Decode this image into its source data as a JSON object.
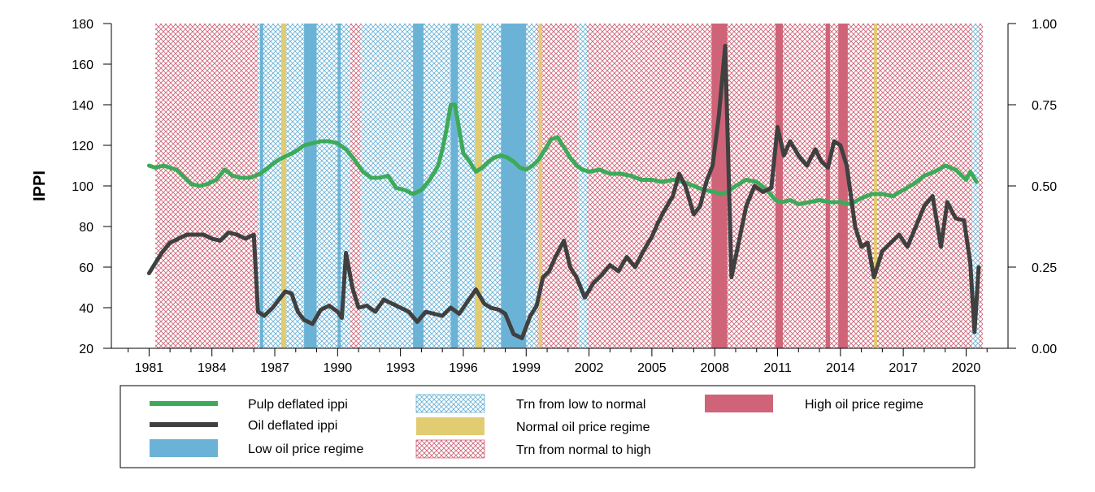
{
  "chart_data": {
    "type": "line",
    "ylabel": "IPPI",
    "xlim": [
      1979.2,
      2022.0
    ],
    "ylim": [
      20,
      180
    ],
    "y2lim": [
      0,
      1
    ],
    "yticks": [
      20,
      40,
      60,
      80,
      100,
      120,
      140,
      160,
      180
    ],
    "y2ticks": [
      "0.00",
      "0.25",
      "0.50",
      "0.75",
      "1.00"
    ],
    "y2tick_values": [
      0,
      0.25,
      0.5,
      0.75,
      1.0
    ],
    "xticks": [
      "1981",
      "1984",
      "1987",
      "1990",
      "1993",
      "1996",
      "1999",
      "2002",
      "2005",
      "2008",
      "2011",
      "2014",
      "2017",
      "2020"
    ],
    "grid": false,
    "legend_position": "bottom",
    "colors": {
      "pulp": "#3daa5a",
      "oil": "#404040",
      "low": "#6bb3d6",
      "normal": "#e2cc72",
      "high": "#cf6478",
      "trn_low_normal": "#6bb3d6",
      "trn_normal_high": "#cf6478"
    },
    "legend": [
      {
        "key": "pulp",
        "label": "Pulp deflated ippi",
        "kind": "line"
      },
      {
        "key": "oil",
        "label": "Oil deflated ippi",
        "kind": "line"
      },
      {
        "key": "low",
        "label": "Low oil price regime",
        "kind": "solid"
      },
      {
        "key": "trn_low_normal",
        "label": "Trn from low to normal",
        "kind": "hatch"
      },
      {
        "key": "normal",
        "label": "Normal oil price regime",
        "kind": "solid"
      },
      {
        "key": "trn_normal_high",
        "label": "Trn from normal to high",
        "kind": "hatch"
      },
      {
        "key": "high",
        "label": "High oil price regime",
        "kind": "solid"
      }
    ],
    "regimes": [
      {
        "type": "trn_normal_high",
        "start": 1981.3,
        "end": 1986.2
      },
      {
        "type": "trn_low_normal",
        "start": 1986.2,
        "end": 1990.6
      },
      {
        "type": "low",
        "start": 1986.3,
        "end": 1986.45
      },
      {
        "type": "normal",
        "start": 1987.3,
        "end": 1987.55
      },
      {
        "type": "low",
        "start": 1988.4,
        "end": 1989.0
      },
      {
        "type": "low",
        "start": 1990.0,
        "end": 1990.15
      },
      {
        "type": "trn_normal_high",
        "start": 1990.6,
        "end": 1991.1
      },
      {
        "type": "trn_low_normal",
        "start": 1991.1,
        "end": 1999.5
      },
      {
        "type": "low",
        "start": 1993.6,
        "end": 1994.1
      },
      {
        "type": "low",
        "start": 1995.4,
        "end": 1995.75
      },
      {
        "type": "normal",
        "start": 1996.55,
        "end": 1996.9
      },
      {
        "type": "low",
        "start": 1997.8,
        "end": 1999.0
      },
      {
        "type": "trn_normal_high",
        "start": 1999.5,
        "end": 2001.5
      },
      {
        "type": "normal",
        "start": 1999.6,
        "end": 1999.75
      },
      {
        "type": "trn_low_normal",
        "start": 2001.5,
        "end": 2001.9
      },
      {
        "type": "trn_normal_high",
        "start": 2001.9,
        "end": 2020.3
      },
      {
        "type": "high",
        "start": 2007.85,
        "end": 2008.6
      },
      {
        "type": "high",
        "start": 2010.9,
        "end": 2011.25
      },
      {
        "type": "high",
        "start": 2013.3,
        "end": 2013.5
      },
      {
        "type": "high",
        "start": 2013.9,
        "end": 2014.35
      },
      {
        "type": "normal",
        "start": 2015.6,
        "end": 2015.75
      },
      {
        "type": "trn_low_normal",
        "start": 2020.3,
        "end": 2020.6
      },
      {
        "type": "trn_normal_high",
        "start": 2020.6,
        "end": 2020.8
      }
    ],
    "series": [
      {
        "key": "pulp",
        "name": "Pulp deflated ippi",
        "x": [
          1981.0,
          1981.3,
          1981.7,
          1982.0,
          1982.3,
          1982.6,
          1983.0,
          1983.4,
          1983.8,
          1984.2,
          1984.6,
          1985.0,
          1985.4,
          1985.8,
          1986.3,
          1986.8,
          1987.2,
          1987.6,
          1988.0,
          1988.4,
          1988.8,
          1989.2,
          1989.6,
          1990.0,
          1990.4,
          1990.8,
          1991.2,
          1991.6,
          1992.0,
          1992.4,
          1992.8,
          1993.2,
          1993.6,
          1994.0,
          1994.4,
          1994.8,
          1995.0,
          1995.2,
          1995.4,
          1995.6,
          1995.8,
          1996.0,
          1996.3,
          1996.6,
          1996.9,
          1997.2,
          1997.5,
          1997.8,
          1998.1,
          1998.4,
          1998.7,
          1999.0,
          1999.3,
          1999.6,
          1999.9,
          2000.2,
          2000.5,
          2000.8,
          2001.1,
          2001.4,
          2001.7,
          2002.0,
          2002.5,
          2003.0,
          2003.5,
          2004.0,
          2004.5,
          2005.0,
          2005.5,
          2006.0,
          2006.5,
          2007.0,
          2007.5,
          2008.0,
          2008.3,
          2008.6,
          2009.0,
          2009.5,
          2010.0,
          2010.5,
          2010.9,
          2011.2,
          2011.6,
          2012.0,
          2012.5,
          2013.0,
          2013.5,
          2014.0,
          2014.5,
          2015.0,
          2015.5,
          2016.0,
          2016.5,
          2017.0,
          2017.5,
          2018.0,
          2018.5,
          2019.0,
          2019.5,
          2020.0,
          2020.2,
          2020.5
        ],
        "values": [
          110,
          109,
          110,
          109,
          108,
          105,
          101,
          100,
          101,
          103,
          108,
          105,
          104,
          104,
          106,
          110,
          113,
          115,
          117,
          120,
          121,
          122,
          122,
          121,
          118,
          113,
          107,
          104,
          104,
          105,
          99,
          98,
          96,
          98,
          103,
          110,
          118,
          128,
          140,
          140,
          128,
          116,
          112,
          107,
          109,
          112,
          114,
          115,
          114,
          112,
          109,
          108,
          110,
          113,
          118,
          123,
          124,
          119,
          114,
          110,
          108,
          107,
          108,
          106,
          106,
          105,
          103,
          103,
          102,
          103,
          102,
          100,
          98,
          97,
          96,
          97,
          100,
          103,
          102,
          98,
          93,
          92,
          93,
          91,
          92,
          93,
          92,
          92,
          91,
          94,
          96,
          96,
          95,
          98,
          101,
          105,
          107,
          110,
          108,
          103,
          107,
          102
        ]
      },
      {
        "key": "oil",
        "name": "Oil deflated ippi",
        "x": [
          1981.0,
          1981.3,
          1981.6,
          1982.0,
          1982.4,
          1982.8,
          1983.2,
          1983.6,
          1984.0,
          1984.4,
          1984.8,
          1985.2,
          1985.6,
          1986.0,
          1986.2,
          1986.5,
          1986.9,
          1987.2,
          1987.5,
          1987.8,
          1988.1,
          1988.4,
          1988.8,
          1989.2,
          1989.6,
          1990.0,
          1990.2,
          1990.4,
          1990.7,
          1991.0,
          1991.4,
          1991.8,
          1992.2,
          1992.6,
          1993.0,
          1993.4,
          1993.8,
          1994.2,
          1994.6,
          1995.0,
          1995.4,
          1995.8,
          1996.2,
          1996.6,
          1997.0,
          1997.3,
          1997.7,
          1998.0,
          1998.4,
          1998.8,
          1999.2,
          1999.5,
          1999.8,
          2000.1,
          2000.4,
          2000.8,
          2001.1,
          2001.4,
          2001.8,
          2002.2,
          2002.6,
          2003.0,
          2003.4,
          2003.8,
          2004.2,
          2004.6,
          2005.0,
          2005.3,
          2005.6,
          2006.0,
          2006.3,
          2006.6,
          2007.0,
          2007.3,
          2007.6,
          2007.9,
          2008.2,
          2008.5,
          2008.8,
          2009.1,
          2009.5,
          2009.9,
          2010.3,
          2010.7,
          2011.0,
          2011.3,
          2011.6,
          2012.0,
          2012.4,
          2012.8,
          2013.1,
          2013.4,
          2013.7,
          2014.0,
          2014.3,
          2014.7,
          2015.0,
          2015.3,
          2015.6,
          2016.0,
          2016.4,
          2016.8,
          2017.2,
          2017.6,
          2018.0,
          2018.4,
          2018.8,
          2019.1,
          2019.5,
          2019.9,
          2020.2,
          2020.4,
          2020.6
        ],
        "values": [
          57,
          62,
          67,
          72,
          74,
          76,
          76,
          76,
          74,
          73,
          77,
          76,
          74,
          76,
          38,
          36,
          40,
          44,
          48,
          47,
          38,
          34,
          32,
          39,
          41,
          38,
          35,
          67,
          50,
          40,
          41,
          38,
          44,
          42,
          40,
          38,
          33,
          38,
          37,
          36,
          40,
          37,
          43,
          49,
          42,
          40,
          39,
          37,
          27,
          25,
          36,
          41,
          55,
          58,
          65,
          73,
          60,
          55,
          45,
          52,
          56,
          61,
          58,
          65,
          60,
          68,
          75,
          82,
          88,
          95,
          106,
          100,
          86,
          90,
          102,
          110,
          135,
          169,
          55,
          70,
          90,
          100,
          97,
          99,
          129,
          115,
          122,
          115,
          110,
          118,
          112,
          109,
          122,
          120,
          110,
          80,
          70,
          72,
          55,
          68,
          72,
          76,
          70,
          80,
          90,
          95,
          70,
          92,
          84,
          83,
          62,
          28,
          60
        ]
      }
    ]
  }
}
